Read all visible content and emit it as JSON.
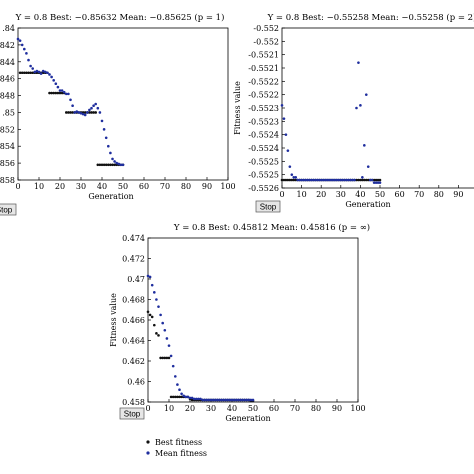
{
  "stop_label": "Stop",
  "legend": {
    "best": "Best fitness",
    "mean": "Mean fitness",
    "best_color": "#111111",
    "mean_color": "#1f2e9e"
  },
  "chart_data": [
    {
      "type": "scatter",
      "title": "Y = 0.8   Best: −0.85632   Mean: −0.85625 (p = 1)",
      "xlabel": "Generation",
      "ylabel": "",
      "xlim": [
        0,
        100
      ],
      "ylim": [
        -0.858,
        -0.84
      ],
      "x_ticks": [
        "0",
        "10",
        "20",
        "30",
        "40",
        "50",
        "60",
        "70",
        "80",
        "90",
        "100"
      ],
      "y_ticks": [
        "-0.84",
        "-0.842",
        "-0.844",
        "-0.846",
        "-0.848",
        "-0.85",
        "-0.852",
        "-0.854",
        "-0.856",
        "-0.858"
      ],
      "y_tick_labels": [
        ".84",
        ".842",
        ".844",
        ".846",
        ".848",
        ".85",
        ".852",
        ".854",
        ".856",
        ".858"
      ],
      "series": [
        {
          "role": "best",
          "x": [
            1,
            2,
            3,
            4,
            5,
            6,
            7,
            8,
            9,
            10,
            11,
            12,
            13,
            14,
            15,
            16,
            17,
            18,
            19,
            20,
            21,
            22,
            23,
            24,
            25,
            26,
            27,
            28,
            29,
            30,
            31,
            32,
            33,
            34,
            35,
            36,
            37,
            38,
            39,
            40,
            41,
            42,
            43,
            44,
            45,
            46,
            47,
            48,
            49,
            50
          ],
          "y": [
            -0.8453,
            -0.8453,
            -0.8453,
            -0.8453,
            -0.8453,
            -0.8453,
            -0.8453,
            -0.8453,
            -0.8453,
            -0.8453,
            -0.8453,
            -0.8453,
            -0.8453,
            -0.8453,
            -0.8477,
            -0.8477,
            -0.8477,
            -0.8477,
            -0.8477,
            -0.8477,
            -0.8477,
            -0.8477,
            -0.85,
            -0.85,
            -0.85,
            -0.85,
            -0.85,
            -0.85,
            -0.85,
            -0.85,
            -0.85,
            -0.85,
            -0.85,
            -0.85,
            -0.85,
            -0.85,
            -0.85,
            -0.8562,
            -0.8562,
            -0.8562,
            -0.8562,
            -0.8562,
            -0.8562,
            -0.8562,
            -0.8562,
            -0.8562,
            -0.8562,
            -0.8562,
            -0.8562,
            -0.8562
          ]
        },
        {
          "role": "mean",
          "x": [
            0,
            1,
            2,
            3,
            4,
            5,
            6,
            7,
            8,
            9,
            10,
            11,
            12,
            13,
            14,
            15,
            16,
            17,
            18,
            19,
            20,
            21,
            22,
            23,
            24,
            25,
            26,
            27,
            28,
            29,
            30,
            31,
            32,
            33,
            34,
            35,
            36,
            37,
            38,
            39,
            40,
            41,
            42,
            43,
            44,
            45,
            46,
            47,
            48,
            49,
            50
          ],
          "y": [
            -0.8413,
            -0.8415,
            -0.842,
            -0.8425,
            -0.843,
            -0.8438,
            -0.8445,
            -0.8448,
            -0.8452,
            -0.8451,
            -0.8452,
            -0.8454,
            -0.8451,
            -0.8452,
            -0.8453,
            -0.8455,
            -0.8458,
            -0.8462,
            -0.8466,
            -0.847,
            -0.8474,
            -0.8474,
            -0.8476,
            -0.8478,
            -0.8478,
            -0.8485,
            -0.8492,
            -0.85,
            -0.8499,
            -0.85,
            -0.8501,
            -0.8502,
            -0.8503,
            -0.85,
            -0.8497,
            -0.8495,
            -0.8492,
            -0.849,
            -0.8495,
            -0.85,
            -0.851,
            -0.852,
            -0.853,
            -0.854,
            -0.8548,
            -0.8555,
            -0.8558,
            -0.856,
            -0.8561,
            -0.8562,
            -0.8562
          ]
        }
      ]
    },
    {
      "type": "scatter",
      "title": "Y = 0.8   Best: −0.55258   Mean: −0.55258 (p = 2)",
      "xlabel": "Generation",
      "ylabel": "Fitness value",
      "xlim": [
        0,
        100
      ],
      "ylim": [
        -0.5526,
        -0.552
      ],
      "x_ticks": [
        "0",
        "10",
        "20",
        "30",
        "40",
        "50",
        "60",
        "70",
        "80",
        "90"
      ],
      "y_ticks": [
        "-0.552",
        "-0.5521",
        "-0.5522",
        "-0.5523",
        "-0.5524",
        "-0.5525",
        "-0.5526"
      ],
      "y_tick_labels": [
        "-0.552",
        "-0.5521",
        "-0.5522",
        "-0.5523",
        "-0.5524",
        "-0.5525",
        "-0.5526"
      ],
      "y_extra_ticks": [
        -0.55205,
        -0.55215,
        -0.55225,
        -0.55235,
        -0.55245,
        -0.55255
      ],
      "y_extra_tick_labels": [
        "-0.552",
        "-0.5521",
        "-0.5522",
        "-0.5523",
        "-0.5524",
        "-0.5525"
      ],
      "series": [
        {
          "role": "best",
          "x": [
            0,
            1,
            2,
            3,
            4,
            5,
            6,
            7,
            8,
            9,
            10,
            11,
            12,
            13,
            14,
            15,
            16,
            17,
            18,
            19,
            20,
            21,
            22,
            23,
            24,
            25,
            26,
            27,
            28,
            29,
            30,
            31,
            32,
            33,
            34,
            35,
            36,
            37,
            38,
            39,
            40,
            41,
            42,
            43,
            44,
            45,
            46,
            47,
            48,
            49,
            50
          ],
          "y": [
            -0.55257,
            -0.55257,
            -0.55257,
            -0.55257,
            -0.55257,
            -0.55257,
            -0.55257,
            -0.55257,
            -0.55257,
            -0.55257,
            -0.55257,
            -0.55257,
            -0.55257,
            -0.55257,
            -0.55257,
            -0.55257,
            -0.55257,
            -0.55257,
            -0.55257,
            -0.55257,
            -0.55257,
            -0.55257,
            -0.55257,
            -0.55257,
            -0.55257,
            -0.55257,
            -0.55257,
            -0.55257,
            -0.55257,
            -0.55257,
            -0.55257,
            -0.55257,
            -0.55257,
            -0.55257,
            -0.55257,
            -0.55257,
            -0.55257,
            -0.55257,
            -0.55257,
            -0.55257,
            -0.55257,
            -0.55257,
            -0.55257,
            -0.55257,
            -0.55257,
            -0.55257,
            -0.55257,
            -0.55257,
            -0.55257,
            -0.55257,
            -0.55257
          ]
        },
        {
          "role": "mean",
          "x": [
            0,
            1,
            2,
            3,
            4,
            5,
            6,
            7,
            8,
            9,
            10,
            11,
            12,
            13,
            14,
            15,
            16,
            17,
            18,
            19,
            20,
            21,
            22,
            23,
            24,
            25,
            26,
            27,
            28,
            29,
            30,
            31,
            32,
            33,
            34,
            35,
            36,
            37,
            38,
            39,
            40,
            41,
            42,
            43,
            44,
            45,
            46,
            47,
            48,
            49,
            50
          ],
          "y": [
            -0.55229,
            -0.55234,
            -0.5524,
            -0.55246,
            -0.55252,
            -0.55255,
            -0.55256,
            -0.55256,
            -0.55257,
            -0.55257,
            -0.55257,
            -0.55257,
            -0.55257,
            -0.55257,
            -0.55257,
            -0.55257,
            -0.55257,
            -0.55257,
            -0.55257,
            -0.55257,
            -0.55257,
            -0.55257,
            -0.55257,
            -0.55257,
            -0.55257,
            -0.55257,
            -0.55257,
            -0.55257,
            -0.55257,
            -0.55257,
            -0.55257,
            -0.55257,
            -0.55257,
            -0.55257,
            -0.55257,
            -0.55257,
            -0.55257,
            -0.55257,
            -0.5523,
            -0.55213,
            -0.55229,
            -0.55256,
            -0.55244,
            -0.55225,
            -0.55252,
            -0.55257,
            -0.55257,
            -0.55258,
            -0.55258,
            -0.55258,
            -0.55258
          ]
        }
      ]
    },
    {
      "type": "scatter",
      "title": "Y = 0.8   Best: 0.45812   Mean: 0.45816 (p = ∞)",
      "xlabel": "Generation",
      "ylabel": "Fitness value",
      "xlim": [
        0,
        100
      ],
      "ylim": [
        0.458,
        0.474
      ],
      "x_ticks": [
        "0",
        "10",
        "20",
        "30",
        "40",
        "50",
        "60",
        "70",
        "80",
        "90",
        "100"
      ],
      "y_ticks": [
        "0.458",
        "0.46",
        "0.462",
        "0.464",
        "0.466",
        "0.468",
        "0.47",
        "0.472",
        "0.474"
      ],
      "y_tick_labels": [
        "0.458",
        "0.46",
        "0.462",
        "0.464",
        "0.466",
        "0.468",
        "0.47",
        "0.472",
        "0.474"
      ],
      "series": [
        {
          "role": "best",
          "x": [
            0,
            1,
            2,
            3,
            4,
            5,
            6,
            7,
            8,
            9,
            10,
            11,
            12,
            13,
            14,
            15,
            16,
            17,
            18,
            19,
            20,
            21,
            22,
            23,
            24,
            25,
            26,
            27,
            28,
            29,
            30,
            31,
            32,
            33,
            34,
            35,
            36,
            37,
            38,
            39,
            40,
            41,
            42,
            43,
            44,
            45,
            46,
            47,
            48,
            49,
            50
          ],
          "y": [
            0.4668,
            0.4665,
            0.4663,
            0.4655,
            0.4647,
            0.4645,
            0.4623,
            0.4623,
            0.4623,
            0.4623,
            0.4623,
            0.4585,
            0.4585,
            0.4585,
            0.4585,
            0.4585,
            0.4585,
            0.4585,
            0.4585,
            0.4585,
            0.4583,
            0.4582,
            0.4582,
            0.4582,
            0.4582,
            0.4582,
            0.4582,
            0.4582,
            0.4582,
            0.4582,
            0.4582,
            0.4582,
            0.4582,
            0.4582,
            0.4582,
            0.4582,
            0.4582,
            0.4582,
            0.4582,
            0.4582,
            0.4582,
            0.4582,
            0.4582,
            0.4582,
            0.4582,
            0.4582,
            0.4582,
            0.4582,
            0.4582,
            0.4581,
            0.4581
          ]
        },
        {
          "role": "mean",
          "x": [
            0,
            1,
            2,
            3,
            4,
            5,
            6,
            7,
            8,
            9,
            10,
            11,
            12,
            13,
            14,
            15,
            16,
            17,
            18,
            19,
            20,
            21,
            22,
            23,
            24,
            25,
            26,
            27,
            28,
            29,
            30,
            31,
            32,
            33,
            34,
            35,
            36,
            37,
            38,
            39,
            40,
            41,
            42,
            43,
            44,
            45,
            46,
            47,
            48,
            49,
            50
          ],
          "y": [
            0.4703,
            0.4702,
            0.4694,
            0.4687,
            0.468,
            0.4673,
            0.4665,
            0.4657,
            0.465,
            0.4642,
            0.4635,
            0.4625,
            0.4615,
            0.4605,
            0.4597,
            0.4592,
            0.4588,
            0.4586,
            0.4585,
            0.4585,
            0.4584,
            0.4584,
            0.4583,
            0.4583,
            0.4583,
            0.4583,
            0.4582,
            0.4582,
            0.4582,
            0.4582,
            0.4582,
            0.4582,
            0.4582,
            0.4582,
            0.4582,
            0.4582,
            0.4582,
            0.4582,
            0.4582,
            0.4582,
            0.4582,
            0.4582,
            0.4582,
            0.4582,
            0.4582,
            0.4582,
            0.4582,
            0.4582,
            0.4582,
            0.4582,
            0.4582
          ]
        }
      ]
    }
  ]
}
